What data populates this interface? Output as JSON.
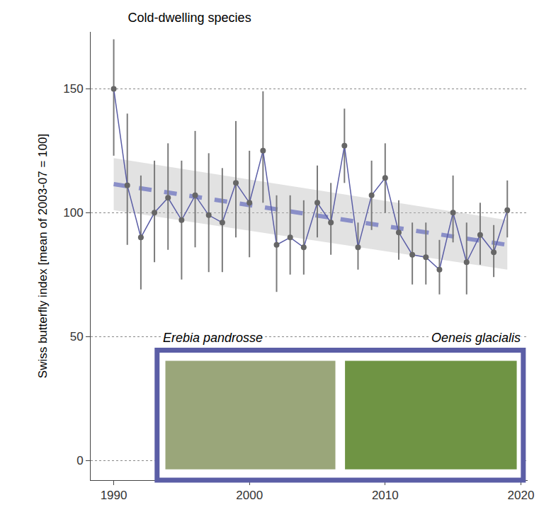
{
  "chart_data": {
    "type": "line",
    "title": "Cold-dwelling species",
    "y_label": "Swiss butterfly index [mean of 2003-07 = 100]",
    "x": [
      1990,
      1991,
      1992,
      1993,
      1994,
      1995,
      1996,
      1997,
      1998,
      1999,
      2000,
      2001,
      2002,
      2003,
      2004,
      2005,
      2006,
      2007,
      2008,
      2009,
      2010,
      2011,
      2012,
      2013,
      2014,
      2015,
      2016,
      2017,
      2018,
      2019
    ],
    "xlim": [
      1988.3,
      2020.5
    ],
    "xticks": [
      1990,
      2000,
      2010,
      2020
    ],
    "ylim": [
      -8,
      173
    ],
    "yticks": [
      0,
      50,
      100,
      150
    ],
    "grid": true,
    "series": [
      {
        "type": "line",
        "color": "#5b5ea6",
        "marker": "circle",
        "values": [
          150,
          111,
          90,
          100,
          106,
          97,
          107,
          99,
          96,
          112,
          104,
          125,
          87,
          90,
          86,
          104,
          96,
          127,
          86,
          107,
          114,
          92,
          83,
          82,
          77,
          100,
          80,
          91,
          84,
          101
        ],
        "error_low": [
          123,
          87,
          69,
          80,
          85,
          73,
          86,
          76,
          76,
          90,
          82,
          104,
          68,
          75,
          75,
          90,
          83,
          112,
          77,
          93,
          100,
          81,
          71,
          71,
          67,
          88,
          67,
          79,
          74,
          90
        ],
        "error_high": [
          170,
          140,
          115,
          121,
          128,
          121,
          133,
          124,
          118,
          137,
          125,
          149,
          107,
          107,
          105,
          119,
          112,
          142,
          96,
          121,
          128,
          105,
          96,
          96,
          89,
          115,
          96,
          104,
          95,
          113
        ]
      },
      {
        "type": "trend",
        "color": "#8a8fc8",
        "line_style": "dashed",
        "x": [
          1990,
          2019
        ],
        "values": [
          111.5,
          87
        ],
        "band_low": [
          101,
          77
        ],
        "band_high": [
          122,
          97
        ]
      }
    ],
    "inset": {
      "labels": [
        "Erebia pandrosse",
        "Oeneis glacialis"
      ]
    }
  }
}
